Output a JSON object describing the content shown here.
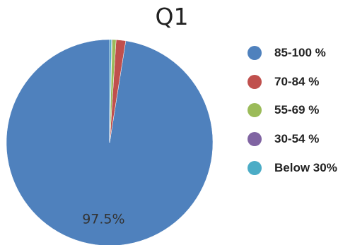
{
  "chart_data": {
    "type": "pie",
    "title": "Q1",
    "slices": [
      {
        "label": "85-100 %",
        "value": 97.5,
        "color": "#4f81bd",
        "data_label": "97.5%"
      },
      {
        "label": "70-84 %",
        "value": 1.5,
        "color": "#c0504d",
        "data_label": ""
      },
      {
        "label": "55-69 %",
        "value": 0.6,
        "color": "#9bbb59",
        "data_label": ""
      },
      {
        "label": "30-54 %",
        "value": 0.1,
        "color": "#8064a2",
        "data_label": ""
      },
      {
        "label": "Below 30%",
        "value": 0.3,
        "color": "#4bacc6",
        "data_label": ""
      }
    ],
    "legend": {
      "position": "right"
    }
  }
}
